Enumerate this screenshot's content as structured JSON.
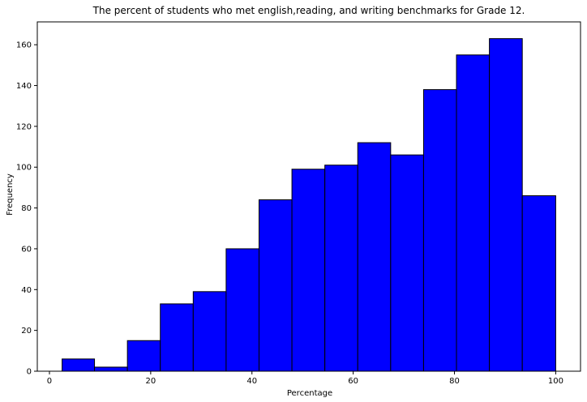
{
  "chart_data": {
    "type": "bar",
    "title": "The percent of students who met english,reading, and writing benchmarks for Grade 12.",
    "xlabel": "Percentage",
    "ylabel": "Frequency",
    "bins": [
      {
        "start": 2.5,
        "end": 8.9,
        "value": 6
      },
      {
        "start": 8.9,
        "end": 15.4,
        "value": 2
      },
      {
        "start": 15.4,
        "end": 21.9,
        "value": 15
      },
      {
        "start": 21.9,
        "end": 28.4,
        "value": 33
      },
      {
        "start": 28.4,
        "end": 34.9,
        "value": 39
      },
      {
        "start": 34.9,
        "end": 41.4,
        "value": 60
      },
      {
        "start": 41.4,
        "end": 47.9,
        "value": 84
      },
      {
        "start": 47.9,
        "end": 54.4,
        "value": 99
      },
      {
        "start": 54.4,
        "end": 60.9,
        "value": 101
      },
      {
        "start": 60.9,
        "end": 67.4,
        "value": 112
      },
      {
        "start": 67.4,
        "end": 73.9,
        "value": 106
      },
      {
        "start": 73.9,
        "end": 80.4,
        "value": 138
      },
      {
        "start": 80.4,
        "end": 86.9,
        "value": 155
      },
      {
        "start": 86.9,
        "end": 93.4,
        "value": 163
      },
      {
        "start": 93.4,
        "end": 100,
        "value": 86
      }
    ],
    "xlim": [
      -2.4,
      104.9
    ],
    "ylim": [
      0,
      171.2
    ],
    "xticks": [
      0,
      20,
      40,
      60,
      80,
      100
    ],
    "yticks": [
      0,
      20,
      40,
      60,
      80,
      100,
      120,
      140,
      160
    ],
    "bar_color": "#0000ff",
    "edge_color": "#000000",
    "grid": false
  }
}
